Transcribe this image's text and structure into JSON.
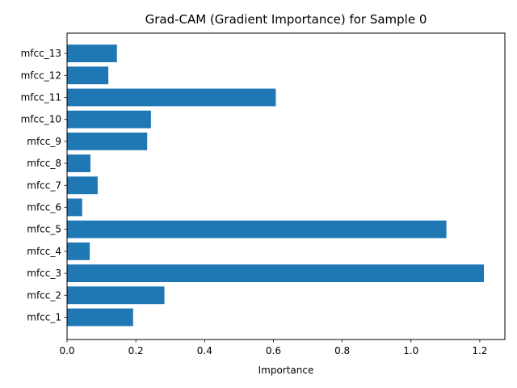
{
  "chart_data": {
    "type": "bar",
    "orientation": "horizontal",
    "title": "Grad-CAM (Gradient Importance) for Sample 0",
    "xlabel": "Importance",
    "ylabel": "",
    "categories": [
      "mfcc_1",
      "mfcc_2",
      "mfcc_3",
      "mfcc_4",
      "mfcc_5",
      "mfcc_6",
      "mfcc_7",
      "mfcc_8",
      "mfcc_9",
      "mfcc_10",
      "mfcc_11",
      "mfcc_12",
      "mfcc_13"
    ],
    "values": [
      0.192,
      0.283,
      1.212,
      0.066,
      1.103,
      0.044,
      0.089,
      0.068,
      0.233,
      0.244,
      0.607,
      0.12,
      0.145
    ],
    "xlim": [
      0,
      1.273
    ],
    "xticks": [
      0.0,
      0.2,
      0.4,
      0.6,
      0.8,
      1.0,
      1.2
    ],
    "xtick_labels": [
      "0.0",
      "0.2",
      "0.4",
      "0.6",
      "0.8",
      "1.0",
      "1.2"
    ],
    "bar_color": "#1f77b4",
    "grid": false,
    "legend": "none"
  }
}
